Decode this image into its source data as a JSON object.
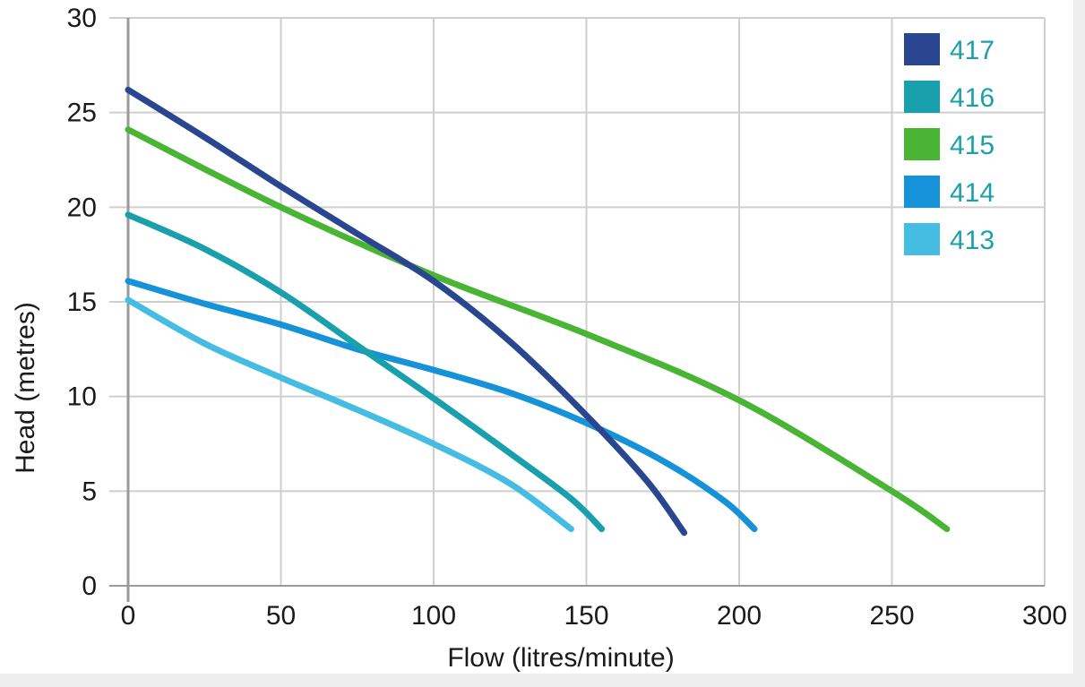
{
  "chart_data": {
    "type": "line",
    "title": "",
    "xlabel": "Flow (litres/minute)",
    "ylabel": "Head (metres)",
    "xlim": [
      0,
      300
    ],
    "ylim": [
      0,
      30
    ],
    "xticks": [
      "0",
      "50",
      "100",
      "150",
      "200",
      "250",
      "300"
    ],
    "yticks": [
      "0",
      "5",
      "10",
      "15",
      "20",
      "25",
      "30"
    ],
    "grid": true,
    "legend_position": "top-right",
    "legend_text_color": "#1aa0ad",
    "series": [
      {
        "name": "417",
        "color": "#2a4690",
        "x": [
          0,
          25,
          50,
          75,
          100,
          125,
          150,
          170,
          182
        ],
        "y": [
          26.2,
          23.7,
          21.1,
          18.6,
          16.1,
          12.9,
          9.0,
          5.5,
          2.8
        ]
      },
      {
        "name": "416",
        "color": "#1a9fad",
        "x": [
          0,
          25,
          50,
          75,
          100,
          125,
          145,
          155
        ],
        "y": [
          19.6,
          17.8,
          15.5,
          12.7,
          9.9,
          7.0,
          4.6,
          3.0
        ]
      },
      {
        "name": "415",
        "color": "#4ab534",
        "x": [
          0,
          50,
          100,
          150,
          200,
          250,
          268
        ],
        "y": [
          24.1,
          20.0,
          16.4,
          13.3,
          9.8,
          5.0,
          3.0
        ]
      },
      {
        "name": "414",
        "color": "#1592d8",
        "x": [
          0,
          25,
          50,
          75,
          100,
          125,
          150,
          175,
          195,
          205
        ],
        "y": [
          16.1,
          14.9,
          13.8,
          12.5,
          11.4,
          10.2,
          8.6,
          6.6,
          4.5,
          3.0
        ]
      },
      {
        "name": "413",
        "color": "#45bde3",
        "x": [
          0,
          25,
          50,
          75,
          100,
          125,
          145
        ],
        "y": [
          15.1,
          12.8,
          11.0,
          9.3,
          7.5,
          5.4,
          3.0
        ]
      }
    ]
  }
}
